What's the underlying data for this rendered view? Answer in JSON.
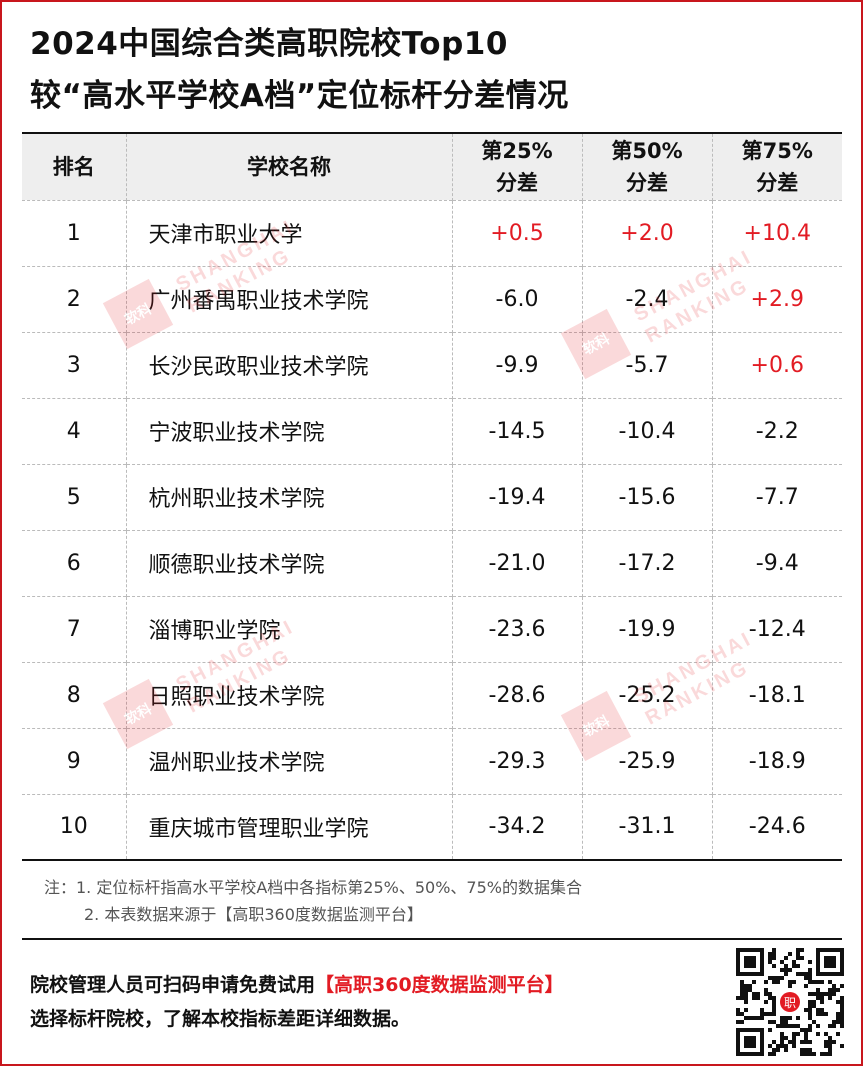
{
  "title": {
    "line1": "2024中国综合类高职院校Top10",
    "line2": "较“高水平学校A档”定位标杆分差情况"
  },
  "table": {
    "headers": {
      "rank": "排名",
      "school": "学校名称",
      "p25_line1": "第25%",
      "p25_line2": "分差",
      "p50_line1": "第50%",
      "p50_line2": "分差",
      "p75_line1": "第75%",
      "p75_line2": "分差"
    },
    "rows": [
      {
        "rank": "1",
        "school": "天津市职业大学",
        "p25": "+0.5",
        "p50": "+2.0",
        "p75": "+10.4"
      },
      {
        "rank": "2",
        "school": "广州番禺职业技术学院",
        "p25": "-6.0",
        "p50": "-2.4",
        "p75": "+2.9"
      },
      {
        "rank": "3",
        "school": "长沙民政职业技术学院",
        "p25": "-9.9",
        "p50": "-5.7",
        "p75": "+0.6"
      },
      {
        "rank": "4",
        "school": "宁波职业技术学院",
        "p25": "-14.5",
        "p50": "-10.4",
        "p75": "-2.2"
      },
      {
        "rank": "5",
        "school": "杭州职业技术学院",
        "p25": "-19.4",
        "p50": "-15.6",
        "p75": "-7.7"
      },
      {
        "rank": "6",
        "school": "顺德职业技术学院",
        "p25": "-21.0",
        "p50": "-17.2",
        "p75": "-9.4"
      },
      {
        "rank": "7",
        "school": "淄博职业学院",
        "p25": "-23.6",
        "p50": "-19.9",
        "p75": "-12.4"
      },
      {
        "rank": "8",
        "school": "日照职业技术学院",
        "p25": "-28.6",
        "p50": "-25.2",
        "p75": "-18.1"
      },
      {
        "rank": "9",
        "school": "温州职业技术学院",
        "p25": "-29.3",
        "p50": "-25.9",
        "p75": "-18.9"
      },
      {
        "rank": "10",
        "school": "重庆城市管理职业学院",
        "p25": "-34.2",
        "p50": "-31.1",
        "p75": "-24.6"
      }
    ]
  },
  "watermark": {
    "logo": "软科",
    "line1": "SHANGHAI",
    "line2": "RANKING"
  },
  "notes": {
    "line1": "注：1. 定位标杆指高水平学校A档中各指标第25%、50%、75%的数据集合",
    "line2": "2. 本表数据来源于【高职360度数据监测平台】"
  },
  "promo": {
    "line1_prefix": "院校管理人员可扫码申请免费试用",
    "line1_highlight": "【高职360度数据监测平台】",
    "line2": "选择标杆院校，了解本校指标差距详细数据。"
  },
  "qr": {
    "center_glyph": "职"
  },
  "colors": {
    "accent": "#e21b23",
    "frame": "#c8161d",
    "header_bg": "#eeeeee"
  }
}
